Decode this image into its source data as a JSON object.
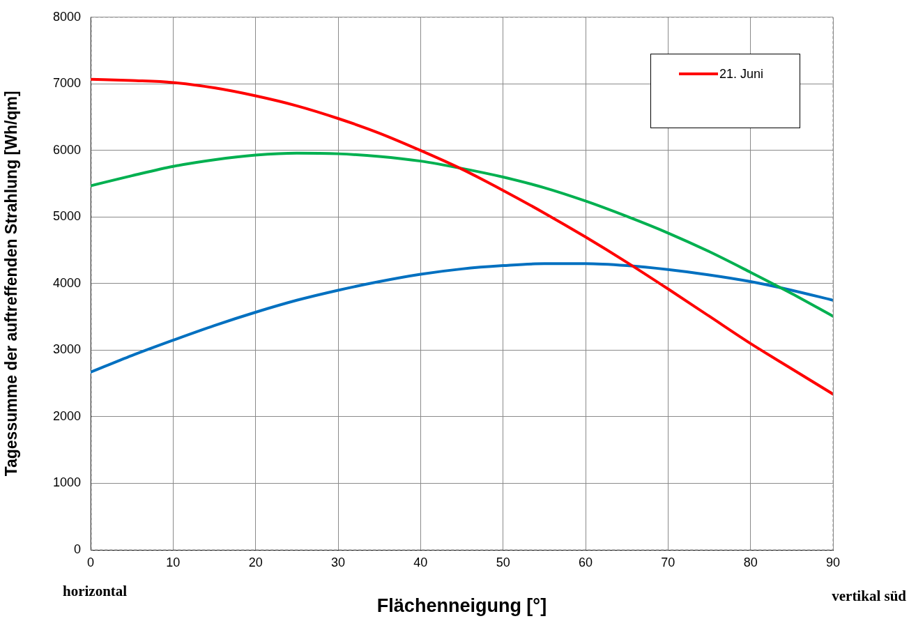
{
  "chart_data": {
    "type": "line",
    "xlabel": "Flächenneigung [°]",
    "ylabel": "Tagessumme der auftreffenden Strahlung [Wh/qm]",
    "x": [
      0,
      5,
      10,
      15,
      20,
      25,
      30,
      35,
      40,
      45,
      50,
      55,
      60,
      65,
      70,
      75,
      80,
      85,
      90
    ],
    "series": [
      {
        "name": "21. Juni",
        "color": "#ff0000",
        "values": [
          7070,
          7050,
          7020,
          6940,
          6820,
          6670,
          6480,
          6260,
          6000,
          5720,
          5400,
          5060,
          4700,
          4320,
          3920,
          3510,
          3100,
          2720,
          2340
        ]
      },
      {
        "color": "#00b050",
        "values": [
          5470,
          5620,
          5760,
          5860,
          5930,
          5960,
          5950,
          5910,
          5840,
          5730,
          5600,
          5440,
          5240,
          5010,
          4760,
          4480,
          4170,
          3850,
          3510
        ]
      },
      {
        "color": "#0070c0",
        "values": [
          2670,
          2920,
          3150,
          3370,
          3570,
          3750,
          3900,
          4030,
          4140,
          4220,
          4270,
          4300,
          4300,
          4270,
          4210,
          4130,
          4030,
          3900,
          3750
        ]
      }
    ],
    "xlim": [
      0,
      90
    ],
    "xticks": [
      0,
      10,
      20,
      30,
      40,
      50,
      60,
      70,
      80,
      90
    ],
    "ylim": [
      0,
      8000
    ],
    "yticks": [
      0,
      1000,
      2000,
      3000,
      4000,
      5000,
      6000,
      7000,
      8000
    ],
    "grid": true,
    "legend": "top right",
    "marker": "none",
    "line_style": "solid",
    "annotations": [
      "horizontal",
      "vertikal süd"
    ]
  }
}
